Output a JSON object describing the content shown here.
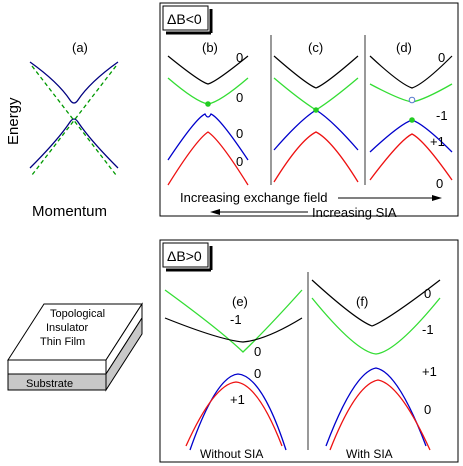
{
  "panel_a": {
    "label": "(a)",
    "y_axis_label": "Energy",
    "x_axis_label": "Momentum"
  },
  "top_box": {
    "tag": "ΔB<0",
    "panels": {
      "b": {
        "label": "(b)",
        "numbers": [
          "0",
          "0",
          "0",
          "0"
        ]
      },
      "c": {
        "label": "(c)"
      },
      "d": {
        "label": "(d)",
        "numbers": [
          "0",
          "-1",
          "+1",
          "0"
        ]
      }
    },
    "exchange_arrow_label": "Increasing exchange field",
    "sia_arrow_label": "Increasing SIA"
  },
  "film": {
    "line1": "Topological",
    "line2": "Insulator",
    "line3": "Thin Film",
    "substrate": "Substrate"
  },
  "bottom_box": {
    "tag": "ΔB>0",
    "panels": {
      "e": {
        "label": "(e)",
        "numbers": [
          "-1",
          "0",
          "0",
          "+1"
        ],
        "caption": "Without SIA"
      },
      "f": {
        "label": "(f)",
        "numbers": [
          "0",
          "-1",
          "+1",
          "0"
        ],
        "caption": "With SIA"
      }
    }
  },
  "colors": {
    "black_band": "#000000",
    "green_band": "#33dd33",
    "blue_band": "#0000cc",
    "red_band": "#ee1111",
    "navy_band": "#000080",
    "green_dashed": "#009900",
    "substrate_fill": "#c8c8c8",
    "dot_green": "#22cc22"
  }
}
